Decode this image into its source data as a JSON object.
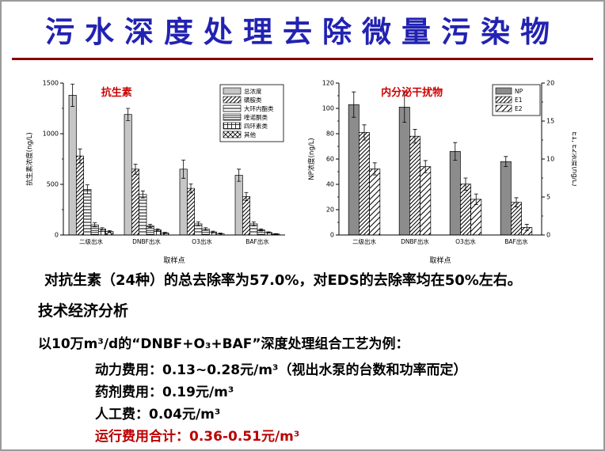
{
  "slide": {
    "title": "污水深度处理去除微量污染物",
    "summary": "对抗生素（24种）的总去除率为57.0%，对EDS的去除率均在50%左右。",
    "economics": {
      "heading": "技术经济分析",
      "intro": "以10万m³/d的“DNBF+O₃+BAF”深度处理组合工艺为例：",
      "lines": [
        {
          "text": "动力费用：0.13~0.28元/m³（视出水泵的台数和功率而定）",
          "color": "#000000"
        },
        {
          "text": "药剂费用：0.19元/m³",
          "color": "#000000"
        },
        {
          "text": "人工费：0.04元/m³",
          "color": "#000000"
        },
        {
          "text": "运行费用合计：0.36-0.51元/m³",
          "color": "#bb0000"
        }
      ]
    },
    "colors": {
      "title_blue": "#2222b2",
      "rule_red": "#8b0000",
      "chart_label_red": "#cc0000"
    }
  },
  "chart_data": [
    {
      "type": "bar",
      "title": "抗生素",
      "xlabel": "取样点",
      "ylabel": "抗生素浓度(ng/L)",
      "ylim": [
        0,
        1500
      ],
      "yticks": [
        0,
        500,
        1000,
        1500
      ],
      "categories": [
        "二级出水",
        "DNBF出水",
        "O3出水",
        "BAF出水"
      ],
      "series": [
        {
          "name": "总浓度",
          "pattern": "solid-light",
          "values": [
            1380,
            1190,
            650,
            590
          ],
          "errors": [
            110,
            60,
            90,
            60
          ]
        },
        {
          "name": "磺胺类",
          "pattern": "diag",
          "values": [
            780,
            650,
            460,
            380
          ],
          "errors": [
            70,
            50,
            45,
            40
          ]
        },
        {
          "name": "大环内酯类",
          "pattern": "horiz",
          "values": [
            450,
            400,
            110,
            110
          ],
          "errors": [
            45,
            35,
            20,
            20
          ]
        },
        {
          "name": "喹诺酮类",
          "pattern": "dense-horiz",
          "values": [
            100,
            90,
            60,
            50
          ],
          "errors": [
            20,
            15,
            12,
            10
          ]
        },
        {
          "name": "四环素类",
          "pattern": "grid",
          "values": [
            60,
            50,
            30,
            25
          ],
          "errors": [
            12,
            10,
            8,
            6
          ]
        },
        {
          "name": "其他",
          "pattern": "cross",
          "values": [
            35,
            20,
            14,
            10
          ],
          "errors": [
            8,
            6,
            4,
            3
          ]
        }
      ],
      "legend_position": "top-right",
      "grid": false
    },
    {
      "type": "bar",
      "title": "内分泌干扰物",
      "xlabel": "取样点",
      "ylabel_left": "NP浓度(ng/L)",
      "ylabel_right": "E1, E2浓度(ng/L)",
      "ylim_left": [
        0,
        120
      ],
      "yticks_left": [
        0,
        20,
        40,
        60,
        80,
        100,
        120
      ],
      "ylim_right": [
        0,
        20
      ],
      "yticks_right": [
        0,
        5,
        10,
        15,
        20
      ],
      "categories": [
        "二级出水",
        "DNBF出水",
        "O3出水",
        "BAF出水"
      ],
      "series": [
        {
          "name": "NP",
          "axis": "left",
          "pattern": "solid-dark",
          "values": [
            103,
            101,
            66,
            58
          ],
          "errors": [
            10,
            12,
            7,
            4
          ]
        },
        {
          "name": "E1",
          "axis": "right",
          "pattern": "diag",
          "values": [
            13.5,
            13.0,
            6.7,
            4.3
          ],
          "errors": [
            1.0,
            0.9,
            0.8,
            0.6
          ]
        },
        {
          "name": "E2",
          "axis": "right",
          "pattern": "diag2",
          "values": [
            8.7,
            9.0,
            4.7,
            1.0
          ],
          "errors": [
            0.8,
            0.8,
            0.7,
            0.4
          ]
        }
      ],
      "legend_position": "top-right",
      "grid": false
    }
  ]
}
